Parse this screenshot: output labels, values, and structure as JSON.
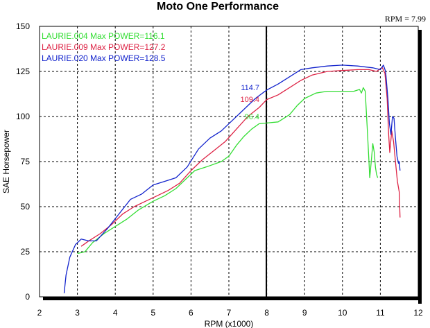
{
  "chart_data": {
    "type": "line",
    "title": "Moto One Performance",
    "rpm_readout": "RPM = 7.99",
    "cursor_x": 7.99,
    "xlabel": "RPM (x1000)",
    "ylabel": "SAE Horsepower",
    "xlim": [
      2,
      12
    ],
    "ylim": [
      0,
      150
    ],
    "x_ticks": [
      "2",
      "3",
      "4",
      "5",
      "6",
      "7",
      "8",
      "9",
      "10",
      "11",
      "12"
    ],
    "y_ticks": [
      "0",
      "25",
      "50",
      "75",
      "100",
      "125",
      "150"
    ],
    "grid": true,
    "legend_position": "top-left",
    "series": [
      {
        "legend": "LAURIE.004   Max POWER=116.1",
        "color": "#33dd33",
        "cursor_value": "96.4",
        "points": [
          [
            3.0,
            24
          ],
          [
            3.2,
            25
          ],
          [
            3.4,
            30
          ],
          [
            3.7,
            35
          ],
          [
            4.0,
            39
          ],
          [
            4.3,
            43
          ],
          [
            4.6,
            48
          ],
          [
            5.0,
            53
          ],
          [
            5.3,
            56
          ],
          [
            5.6,
            60
          ],
          [
            5.9,
            66
          ],
          [
            6.1,
            70
          ],
          [
            6.4,
            72
          ],
          [
            6.8,
            75
          ],
          [
            7.0,
            78
          ],
          [
            7.2,
            84
          ],
          [
            7.4,
            89
          ],
          [
            7.6,
            93
          ],
          [
            7.8,
            96
          ],
          [
            8.0,
            96.4
          ],
          [
            8.3,
            97
          ],
          [
            8.6,
            101
          ],
          [
            8.8,
            106
          ],
          [
            9.0,
            110
          ],
          [
            9.3,
            113
          ],
          [
            9.6,
            114
          ],
          [
            10.0,
            114
          ],
          [
            10.3,
            114
          ],
          [
            10.45,
            115
          ],
          [
            10.5,
            113
          ],
          [
            10.55,
            116
          ],
          [
            10.6,
            114
          ],
          [
            10.65,
            95
          ],
          [
            10.7,
            75
          ],
          [
            10.72,
            66
          ],
          [
            10.76,
            75
          ],
          [
            10.8,
            85
          ],
          [
            10.84,
            80
          ],
          [
            10.87,
            72
          ],
          [
            10.9,
            68
          ],
          [
            10.93,
            66
          ]
        ]
      },
      {
        "legend": "LAURIE.009   Max POWER=127.2",
        "color": "#dd2244",
        "cursor_value": "109.4",
        "points": [
          [
            3.1,
            28
          ],
          [
            3.3,
            31
          ],
          [
            3.6,
            35
          ],
          [
            3.9,
            40
          ],
          [
            4.2,
            46
          ],
          [
            4.5,
            50
          ],
          [
            4.8,
            53
          ],
          [
            5.1,
            56
          ],
          [
            5.4,
            59
          ],
          [
            5.7,
            63
          ],
          [
            6.0,
            70
          ],
          [
            6.3,
            76
          ],
          [
            6.6,
            81
          ],
          [
            6.9,
            86
          ],
          [
            7.2,
            93
          ],
          [
            7.5,
            100
          ],
          [
            7.8,
            105
          ],
          [
            8.0,
            109.4
          ],
          [
            8.3,
            112
          ],
          [
            8.6,
            116
          ],
          [
            8.9,
            120
          ],
          [
            9.2,
            123
          ],
          [
            9.6,
            125
          ],
          [
            10.0,
            125.5
          ],
          [
            10.4,
            126
          ],
          [
            10.7,
            126
          ],
          [
            10.9,
            125
          ],
          [
            11.05,
            127.2
          ],
          [
            11.12,
            124
          ],
          [
            11.18,
            110
          ],
          [
            11.22,
            90
          ],
          [
            11.25,
            80
          ],
          [
            11.3,
            92
          ],
          [
            11.35,
            86
          ],
          [
            11.4,
            75
          ],
          [
            11.45,
            64
          ],
          [
            11.5,
            58
          ],
          [
            11.52,
            44
          ]
        ]
      },
      {
        "legend": "LAURIE.020   Max POWER=128.5",
        "color": "#1122cc",
        "cursor_value": "114.7",
        "points": [
          [
            2.65,
            2
          ],
          [
            2.7,
            12
          ],
          [
            2.8,
            22
          ],
          [
            2.95,
            29
          ],
          [
            3.1,
            32
          ],
          [
            3.3,
            31
          ],
          [
            3.5,
            31
          ],
          [
            3.8,
            38
          ],
          [
            4.1,
            46
          ],
          [
            4.4,
            54
          ],
          [
            4.7,
            57
          ],
          [
            5.0,
            62
          ],
          [
            5.3,
            64
          ],
          [
            5.6,
            66
          ],
          [
            5.9,
            72
          ],
          [
            6.2,
            82
          ],
          [
            6.5,
            88
          ],
          [
            6.8,
            92
          ],
          [
            7.1,
            98
          ],
          [
            7.4,
            104
          ],
          [
            7.7,
            110
          ],
          [
            8.0,
            114.7
          ],
          [
            8.3,
            118
          ],
          [
            8.6,
            122
          ],
          [
            8.9,
            126
          ],
          [
            9.2,
            127
          ],
          [
            9.6,
            128
          ],
          [
            10.0,
            128.5
          ],
          [
            10.4,
            128
          ],
          [
            10.8,
            127
          ],
          [
            11.0,
            126
          ],
          [
            11.08,
            128.5
          ],
          [
            11.14,
            125
          ],
          [
            11.2,
            110
          ],
          [
            11.24,
            96
          ],
          [
            11.28,
            90
          ],
          [
            11.32,
            100
          ],
          [
            11.36,
            99
          ],
          [
            11.4,
            88
          ],
          [
            11.44,
            78
          ],
          [
            11.48,
            74
          ],
          [
            11.5,
            75
          ],
          [
            11.52,
            70
          ]
        ]
      }
    ]
  }
}
